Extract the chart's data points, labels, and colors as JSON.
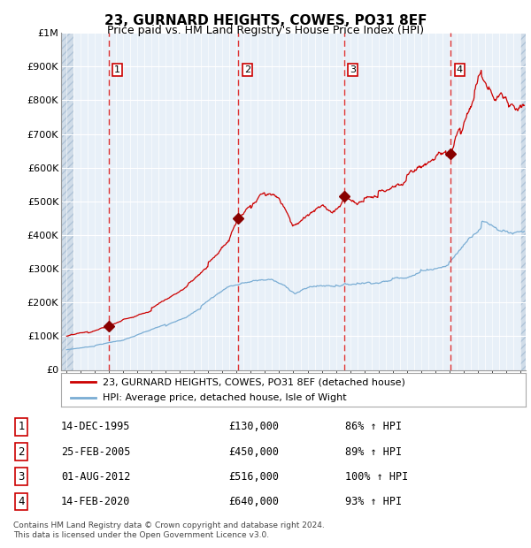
{
  "title": "23, GURNARD HEIGHTS, COWES, PO31 8EF",
  "subtitle": "Price paid vs. HM Land Registry's House Price Index (HPI)",
  "background_color": "#ffffff",
  "plot_bg_color": "#e8f0f8",
  "hatch_color": "#c8d8e8",
  "grid_color": "#ffffff",
  "red_line_color": "#cc0000",
  "blue_line_color": "#7aadd4",
  "transaction_marker_color": "#880000",
  "vline_color": "#dd3333",
  "label_box_color": "#cc0000",
  "ylim_min": 0,
  "ylim_max": 1000000,
  "xlim_min": 1992.6,
  "xlim_max": 2025.4,
  "ytick_labels": [
    "£0",
    "£100K",
    "£200K",
    "£300K",
    "£400K",
    "£500K",
    "£600K",
    "£700K",
    "£800K",
    "£900K",
    "£1M"
  ],
  "ytick_values": [
    0,
    100000,
    200000,
    300000,
    400000,
    500000,
    600000,
    700000,
    800000,
    900000,
    1000000
  ],
  "transactions": [
    {
      "id": 1,
      "date_str": "14-DEC-1995",
      "year": 1995.95,
      "price": 130000,
      "pct": "86%"
    },
    {
      "id": 2,
      "date_str": "25-FEB-2005",
      "year": 2005.12,
      "price": 450000,
      "pct": "89%"
    },
    {
      "id": 3,
      "date_str": "01-AUG-2012",
      "year": 2012.58,
      "price": 516000,
      "pct": "100%"
    },
    {
      "id": 4,
      "date_str": "14-FEB-2020",
      "year": 2020.12,
      "price": 640000,
      "pct": "93%"
    }
  ],
  "legend_line1": "23, GURNARD HEIGHTS, COWES, PO31 8EF (detached house)",
  "legend_line2": "HPI: Average price, detached house, Isle of Wight",
  "footer_line1": "Contains HM Land Registry data © Crown copyright and database right 2024.",
  "footer_line2": "This data is licensed under the Open Government Licence v3.0.",
  "table_rows": [
    {
      "id": 1,
      "date": "14-DEC-1995",
      "price": "£130,000",
      "pct": "86% ↑ HPI"
    },
    {
      "id": 2,
      "date": "25-FEB-2005",
      "price": "£450,000",
      "pct": "89% ↑ HPI"
    },
    {
      "id": 3,
      "date": "01-AUG-2012",
      "price": "£516,000",
      "pct": "100% ↑ HPI"
    },
    {
      "id": 4,
      "date": "14-FEB-2020",
      "price": "£640,000",
      "pct": "93% ↑ HPI"
    }
  ]
}
